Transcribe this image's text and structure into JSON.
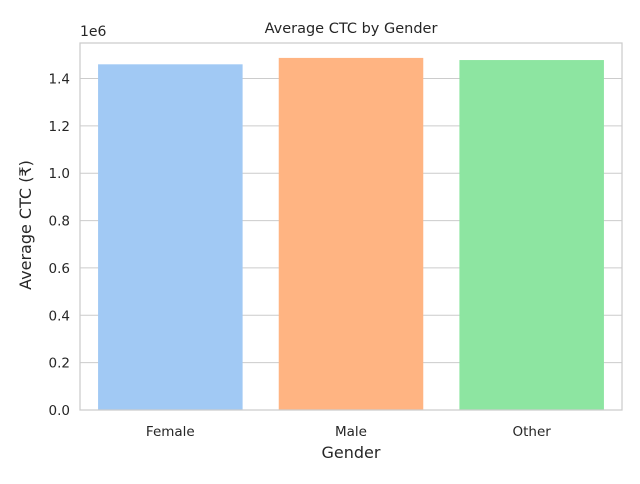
{
  "chart_data": {
    "type": "bar",
    "title": "Average CTC by Gender",
    "xlabel": "Gender",
    "ylabel": "Average CTC (₹)",
    "y_offset_label": "1e6",
    "categories": [
      "Female",
      "Male",
      "Other"
    ],
    "values": [
      1460000,
      1487000,
      1478000
    ],
    "colors": [
      "#a1c9f4",
      "#ffb482",
      "#8de5a1"
    ],
    "ylim": [
      0,
      1550000
    ],
    "yticks": [
      0,
      200000,
      400000,
      600000,
      800000,
      1000000,
      1200000,
      1400000
    ],
    "ytick_labels": [
      "0.0",
      "0.2",
      "0.4",
      "0.6",
      "0.8",
      "1.0",
      "1.2",
      "1.4"
    ],
    "grid": true,
    "grid_axis": "y",
    "legend": "none"
  }
}
